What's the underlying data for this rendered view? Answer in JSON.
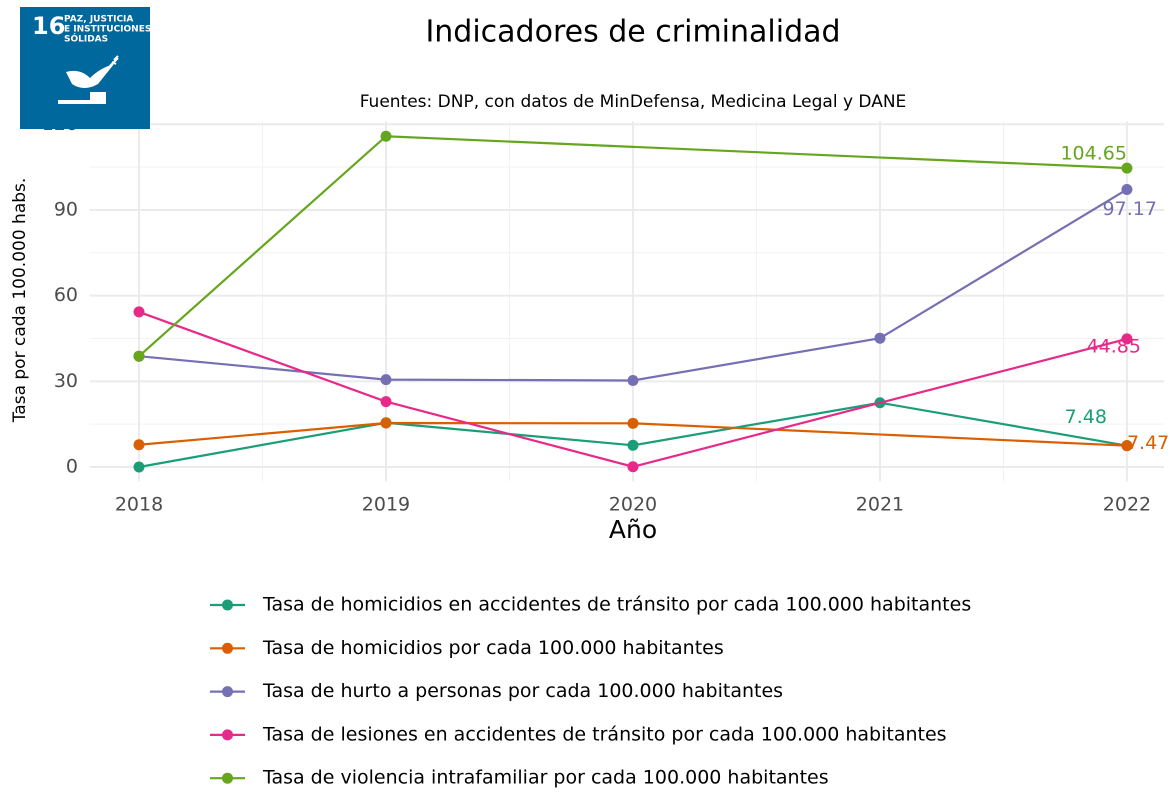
{
  "logo": {
    "number": "16",
    "lines": [
      "PAZ, JUSTICIA",
      "E INSTITUCIONES",
      "SÓLIDAS"
    ]
  },
  "chart_data": {
    "type": "line",
    "title": "Indicadores de criminalidad",
    "subtitle": "Fuentes: DNP, con datos de MinDefensa, Medicina Legal y DANE",
    "xlabel": "Año",
    "ylabel": "Tasa por cada 100.000 habs.",
    "xlim": [
      2017.8,
      2022.15
    ],
    "xticks": [
      2018,
      2019,
      2020,
      2021,
      2022
    ],
    "ylim": [
      -5,
      121
    ],
    "yticks": [
      0,
      30,
      60,
      90,
      120
    ],
    "grid": true,
    "minor_grid": true,
    "legend": "bottom",
    "data_labels": "last",
    "series": [
      {
        "name": "Tasa de homicidios en accidentes de tránsito por cada 100.000 habitantes",
        "color": "#1b9e77",
        "x": [
          2018,
          2019,
          2020,
          2021,
          2022
        ],
        "values": [
          0,
          15.5,
          7.6,
          22.5,
          7.48
        ]
      },
      {
        "name": "Tasa de homicidios por cada 100.000 habitantes",
        "color": "#d95f02",
        "x": [
          2018,
          2019,
          2020,
          2022
        ],
        "values": [
          7.8,
          15.4,
          15.3,
          7.47
        ]
      },
      {
        "name": "Tasa de hurto a personas por cada 100.000 habitantes",
        "color": "#7570b3",
        "x": [
          2018,
          2019,
          2020,
          2021,
          2022
        ],
        "values": [
          38.8,
          30.6,
          30.3,
          45.1,
          97.17
        ]
      },
      {
        "name": "Tasa de lesiones en accidentes de tránsito por cada 100.000 habitantes",
        "color": "#e7298a",
        "x": [
          2018,
          2019,
          2020,
          2022
        ],
        "values": [
          54.3,
          22.9,
          0.1,
          44.85
        ]
      },
      {
        "name": "Tasa de violencia intrafamiliar por cada 100.000 habitantes",
        "color": "#66a61e",
        "x": [
          2018,
          2019,
          2022
        ],
        "values": [
          38.8,
          115.8,
          104.65
        ]
      }
    ]
  }
}
